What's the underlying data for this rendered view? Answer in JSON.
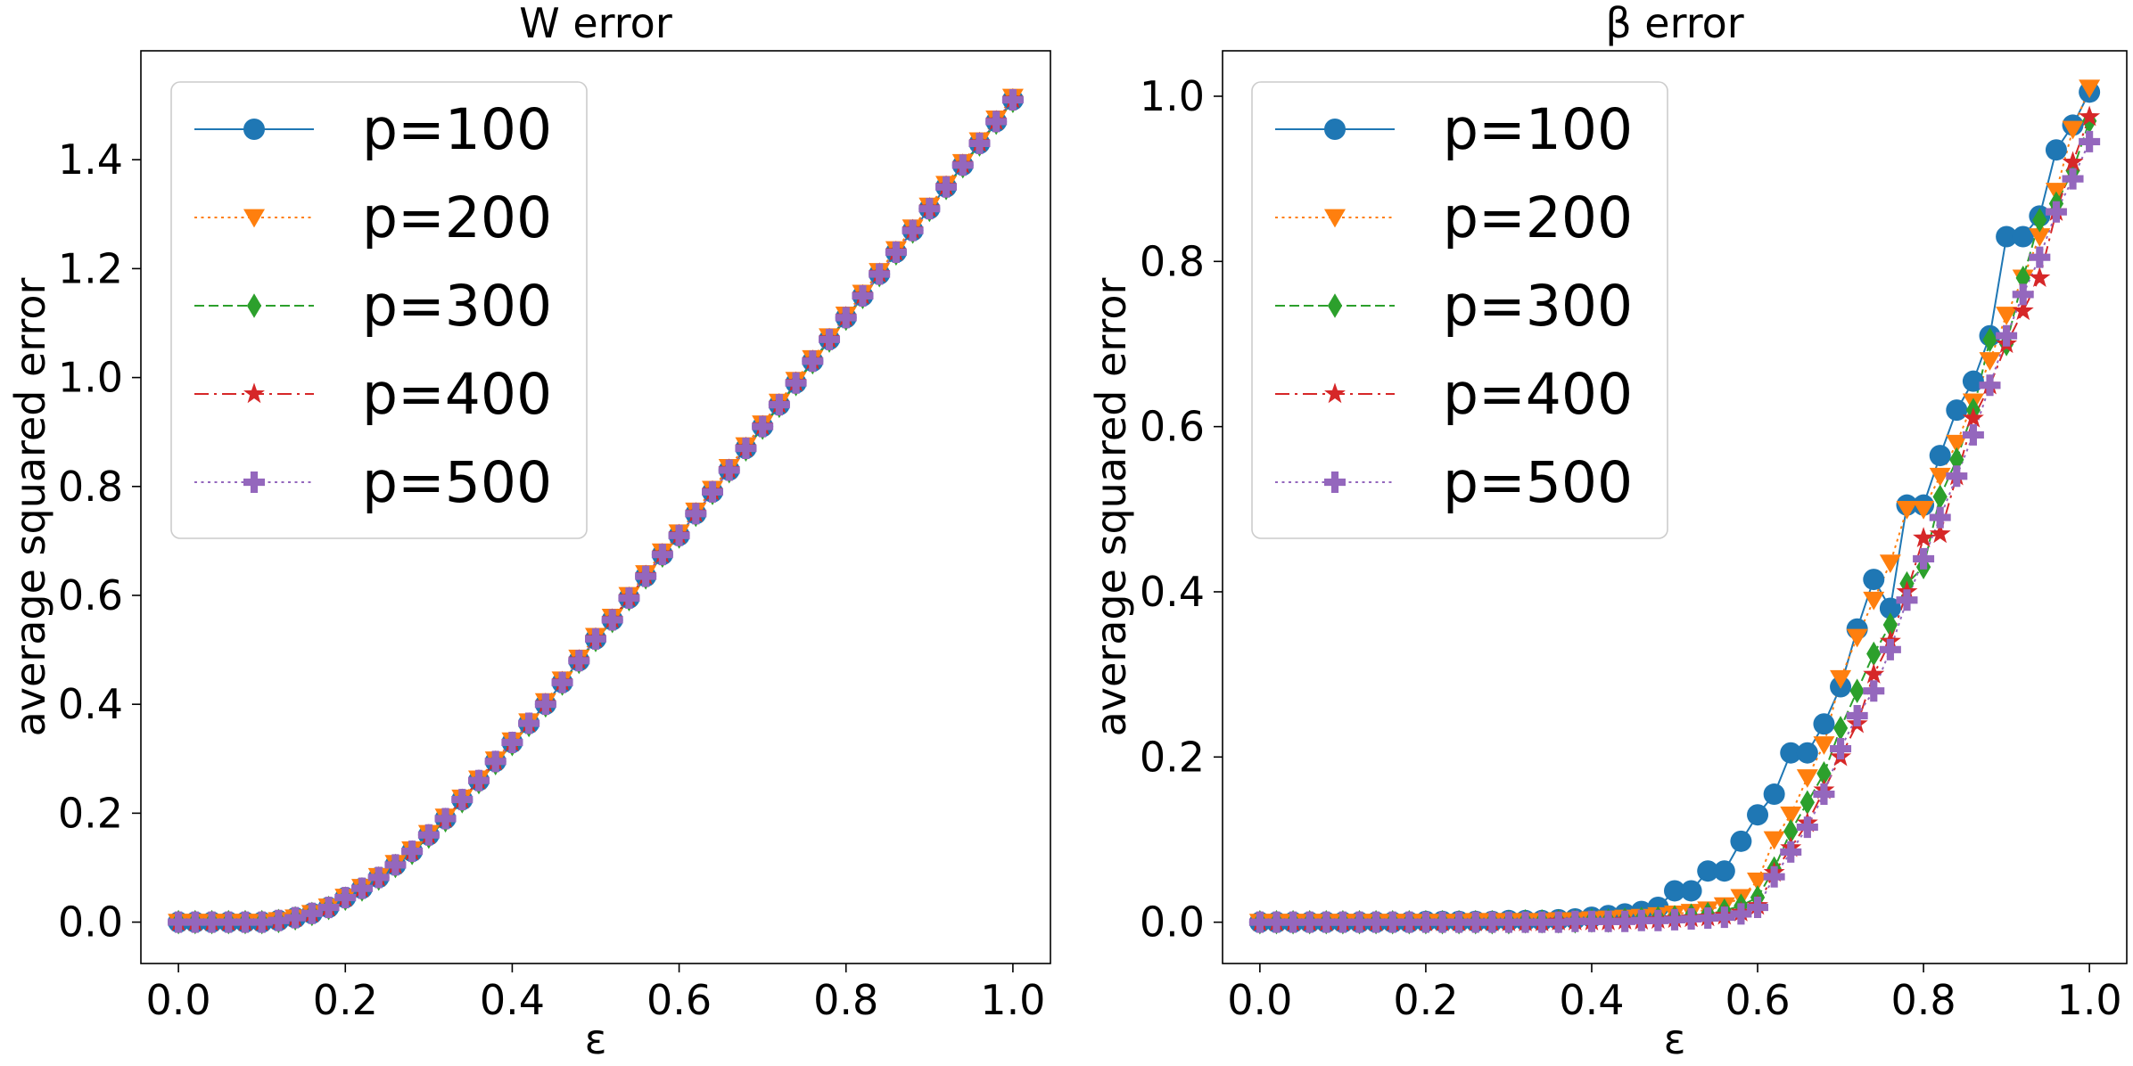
{
  "chart_data": [
    {
      "type": "line",
      "title": "W error",
      "xlabel": "ε",
      "ylabel": "average squared error",
      "xlim": [
        -0.045,
        1.045
      ],
      "ylim": [
        -0.076,
        1.6
      ],
      "xticks": [
        0.0,
        0.2,
        0.4,
        0.6,
        0.8,
        1.0
      ],
      "xtick_labels": [
        "0.0",
        "0.2",
        "0.4",
        "0.6",
        "0.8",
        "1.0"
      ],
      "yticks": [
        0.0,
        0.2,
        0.4,
        0.6,
        0.8,
        1.0,
        1.2,
        1.4
      ],
      "ytick_labels": [
        "0.0",
        "0.2",
        "0.4",
        "0.6",
        "0.8",
        "1.0",
        "1.2",
        "1.4"
      ],
      "legend_position": "upper-left",
      "x": [
        0.0,
        0.02,
        0.04,
        0.06,
        0.08,
        0.1,
        0.12,
        0.14,
        0.16,
        0.18,
        0.2,
        0.22,
        0.24,
        0.26,
        0.28,
        0.3,
        0.32,
        0.34,
        0.36,
        0.38,
        0.4,
        0.42,
        0.44,
        0.46,
        0.48,
        0.5,
        0.52,
        0.54,
        0.56,
        0.58,
        0.6,
        0.62,
        0.64,
        0.66,
        0.68,
        0.7,
        0.72,
        0.74,
        0.76,
        0.78,
        0.8,
        0.82,
        0.84,
        0.86,
        0.88,
        0.9,
        0.92,
        0.94,
        0.96,
        0.98,
        1.0
      ],
      "series": [
        {
          "name": "p=100",
          "color": "#1f77b4",
          "marker": "circle",
          "linestyle": "solid",
          "values": [
            0.0,
            0.0,
            0.0,
            0.0,
            0.0,
            0.0,
            0.003,
            0.008,
            0.016,
            0.027,
            0.045,
            0.062,
            0.082,
            0.105,
            0.13,
            0.16,
            0.19,
            0.225,
            0.26,
            0.295,
            0.33,
            0.365,
            0.4,
            0.44,
            0.48,
            0.52,
            0.555,
            0.595,
            0.635,
            0.675,
            0.71,
            0.75,
            0.79,
            0.83,
            0.87,
            0.91,
            0.95,
            0.99,
            1.03,
            1.07,
            1.11,
            1.15,
            1.19,
            1.23,
            1.27,
            1.31,
            1.35,
            1.39,
            1.43,
            1.47,
            1.51
          ]
        },
        {
          "name": "p=200",
          "color": "#ff7f0e",
          "marker": "triangle-down",
          "linestyle": "dotted",
          "values": [
            0.0,
            0.0,
            0.0,
            0.0,
            0.0,
            0.0,
            0.003,
            0.008,
            0.016,
            0.028,
            0.046,
            0.064,
            0.084,
            0.108,
            0.133,
            0.163,
            0.193,
            0.228,
            0.263,
            0.298,
            0.333,
            0.368,
            0.405,
            0.445,
            0.485,
            0.525,
            0.56,
            0.6,
            0.64,
            0.68,
            0.715,
            0.755,
            0.795,
            0.835,
            0.875,
            0.915,
            0.955,
            0.995,
            1.035,
            1.075,
            1.115,
            1.155,
            1.195,
            1.235,
            1.275,
            1.315,
            1.355,
            1.395,
            1.435,
            1.475,
            1.515
          ]
        },
        {
          "name": "p=300",
          "color": "#2ca02c",
          "marker": "diamond",
          "linestyle": "dashed",
          "values": [
            0.0,
            0.0,
            0.0,
            0.0,
            0.0,
            0.0,
            0.002,
            0.007,
            0.015,
            0.026,
            0.043,
            0.06,
            0.08,
            0.103,
            0.127,
            0.157,
            0.187,
            0.222,
            0.257,
            0.292,
            0.327,
            0.362,
            0.398,
            0.438,
            0.478,
            0.518,
            0.553,
            0.593,
            0.633,
            0.673,
            0.708,
            0.748,
            0.788,
            0.828,
            0.868,
            0.908,
            0.948,
            0.988,
            1.028,
            1.068,
            1.108,
            1.148,
            1.188,
            1.228,
            1.268,
            1.308,
            1.348,
            1.388,
            1.428,
            1.468,
            1.508
          ]
        },
        {
          "name": "p=400",
          "color": "#d62728",
          "marker": "star",
          "linestyle": "dashdot",
          "values": [
            0.0,
            0.0,
            0.0,
            0.0,
            0.0,
            0.0,
            0.003,
            0.008,
            0.016,
            0.027,
            0.045,
            0.062,
            0.082,
            0.105,
            0.13,
            0.16,
            0.19,
            0.225,
            0.26,
            0.295,
            0.33,
            0.365,
            0.401,
            0.441,
            0.481,
            0.521,
            0.556,
            0.596,
            0.636,
            0.676,
            0.711,
            0.751,
            0.791,
            0.831,
            0.871,
            0.911,
            0.951,
            0.991,
            1.031,
            1.071,
            1.111,
            1.151,
            1.191,
            1.231,
            1.271,
            1.311,
            1.351,
            1.391,
            1.431,
            1.471,
            1.511
          ]
        },
        {
          "name": "p=500",
          "color": "#9467bd",
          "marker": "plus",
          "linestyle": "dotted",
          "values": [
            0.0,
            0.0,
            0.0,
            0.0,
            0.0,
            0.0,
            0.003,
            0.008,
            0.016,
            0.027,
            0.045,
            0.062,
            0.082,
            0.105,
            0.13,
            0.16,
            0.19,
            0.225,
            0.26,
            0.295,
            0.33,
            0.365,
            0.4,
            0.44,
            0.48,
            0.52,
            0.555,
            0.595,
            0.635,
            0.675,
            0.71,
            0.75,
            0.79,
            0.83,
            0.87,
            0.91,
            0.95,
            0.99,
            1.03,
            1.07,
            1.11,
            1.15,
            1.19,
            1.23,
            1.27,
            1.31,
            1.35,
            1.39,
            1.43,
            1.47,
            1.51
          ]
        }
      ]
    },
    {
      "type": "line",
      "title": "β error",
      "xlabel": "ε",
      "ylabel": "average squared error",
      "xlim": [
        -0.045,
        1.045
      ],
      "ylim": [
        -0.05,
        1.055
      ],
      "xticks": [
        0.0,
        0.2,
        0.4,
        0.6,
        0.8,
        1.0
      ],
      "xtick_labels": [
        "0.0",
        "0.2",
        "0.4",
        "0.6",
        "0.8",
        "1.0"
      ],
      "yticks": [
        0.0,
        0.2,
        0.4,
        0.6,
        0.8,
        1.0
      ],
      "ytick_labels": [
        "0.0",
        "0.2",
        "0.4",
        "0.6",
        "0.8",
        "1.0"
      ],
      "legend_position": "upper-left",
      "x": [
        0.0,
        0.02,
        0.04,
        0.06,
        0.08,
        0.1,
        0.12,
        0.14,
        0.16,
        0.18,
        0.2,
        0.22,
        0.24,
        0.26,
        0.28,
        0.3,
        0.32,
        0.34,
        0.36,
        0.38,
        0.4,
        0.42,
        0.44,
        0.46,
        0.48,
        0.5,
        0.52,
        0.54,
        0.56,
        0.58,
        0.6,
        0.62,
        0.64,
        0.66,
        0.68,
        0.7,
        0.72,
        0.74,
        0.76,
        0.78,
        0.8,
        0.82,
        0.84,
        0.86,
        0.88,
        0.9,
        0.92,
        0.94,
        0.96,
        0.98,
        1.0
      ],
      "series": [
        {
          "name": "p=100",
          "color": "#1f77b4",
          "marker": "circle",
          "linestyle": "solid",
          "values": [
            0.0,
            0.0,
            0.0,
            0.0,
            0.0,
            0.0,
            0.0,
            0.0,
            0.0,
            0.0,
            0.001,
            0.001,
            0.001,
            0.001,
            0.001,
            0.002,
            0.002,
            0.002,
            0.003,
            0.004,
            0.006,
            0.008,
            0.01,
            0.013,
            0.018,
            0.038,
            0.038,
            0.062,
            0.062,
            0.098,
            0.13,
            0.155,
            0.205,
            0.205,
            0.24,
            0.285,
            0.355,
            0.415,
            0.38,
            0.505,
            0.505,
            0.565,
            0.62,
            0.655,
            0.71,
            0.83,
            0.83,
            0.855,
            0.935,
            0.965,
            1.005
          ]
        },
        {
          "name": "p=200",
          "color": "#ff7f0e",
          "marker": "triangle-down",
          "linestyle": "dotted",
          "values": [
            0.0,
            0.0,
            0.0,
            0.0,
            0.0,
            0.0,
            0.0,
            0.0,
            0.0,
            0.0,
            0.0,
            0.0,
            0.0,
            0.001,
            0.001,
            0.001,
            0.001,
            0.001,
            0.002,
            0.002,
            0.003,
            0.004,
            0.005,
            0.006,
            0.008,
            0.01,
            0.012,
            0.015,
            0.02,
            0.03,
            0.05,
            0.1,
            0.13,
            0.175,
            0.215,
            0.295,
            0.345,
            0.39,
            0.435,
            0.5,
            0.5,
            0.54,
            0.58,
            0.63,
            0.68,
            0.735,
            0.78,
            0.83,
            0.885,
            0.96,
            1.01
          ]
        },
        {
          "name": "p=300",
          "color": "#2ca02c",
          "marker": "diamond",
          "linestyle": "dashed",
          "values": [
            0.0,
            0.0,
            0.0,
            0.0,
            0.0,
            0.0,
            0.0,
            0.0,
            0.0,
            0.0,
            0.0,
            0.0,
            0.0,
            0.0,
            0.0,
            0.0,
            0.001,
            0.001,
            0.001,
            0.001,
            0.002,
            0.002,
            0.003,
            0.004,
            0.005,
            0.006,
            0.008,
            0.01,
            0.014,
            0.02,
            0.03,
            0.065,
            0.11,
            0.145,
            0.18,
            0.235,
            0.28,
            0.325,
            0.36,
            0.41,
            0.43,
            0.515,
            0.56,
            0.62,
            0.705,
            0.7,
            0.78,
            0.85,
            0.87,
            0.91,
            0.97
          ]
        },
        {
          "name": "p=400",
          "color": "#d62728",
          "marker": "star",
          "linestyle": "dashdot",
          "values": [
            0.0,
            0.0,
            0.0,
            0.0,
            0.0,
            0.0,
            0.0,
            0.0,
            0.0,
            0.0,
            0.0,
            0.0,
            0.0,
            0.0,
            0.0,
            0.0,
            0.0,
            0.0,
            0.001,
            0.001,
            0.001,
            0.001,
            0.002,
            0.002,
            0.003,
            0.004,
            0.005,
            0.006,
            0.008,
            0.012,
            0.02,
            0.06,
            0.09,
            0.12,
            0.16,
            0.2,
            0.24,
            0.3,
            0.34,
            0.4,
            0.465,
            0.47,
            0.54,
            0.61,
            0.65,
            0.7,
            0.74,
            0.78,
            0.86,
            0.92,
            0.975
          ]
        },
        {
          "name": "p=500",
          "color": "#9467bd",
          "marker": "plus",
          "linestyle": "dotted",
          "values": [
            0.0,
            0.0,
            0.0,
            0.0,
            0.0,
            0.0,
            0.0,
            0.0,
            0.0,
            0.0,
            0.0,
            0.0,
            0.0,
            0.0,
            0.0,
            0.0,
            0.0,
            0.0,
            0.0,
            0.001,
            0.001,
            0.001,
            0.001,
            0.002,
            0.002,
            0.003,
            0.004,
            0.005,
            0.006,
            0.01,
            0.018,
            0.055,
            0.085,
            0.115,
            0.155,
            0.21,
            0.25,
            0.28,
            0.33,
            0.39,
            0.44,
            0.49,
            0.54,
            0.59,
            0.65,
            0.71,
            0.76,
            0.805,
            0.86,
            0.9,
            0.945
          ]
        }
      ]
    }
  ]
}
